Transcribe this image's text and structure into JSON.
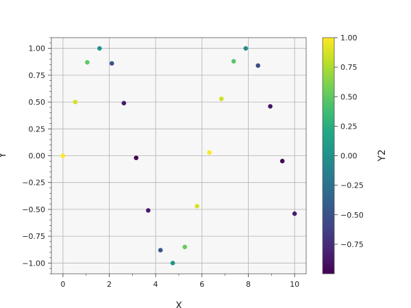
{
  "chart_data": {
    "type": "scatter",
    "title": "",
    "xlabel": "X",
    "ylabel": "Y",
    "xlim": [
      -0.5,
      10.5
    ],
    "ylim": [
      -1.1,
      1.1
    ],
    "xticks": [
      0,
      2,
      4,
      6,
      8,
      10
    ],
    "yticks": [
      -1.0,
      -0.75,
      -0.5,
      -0.25,
      0.0,
      0.25,
      0.5,
      0.75,
      1.0
    ],
    "grid": true,
    "colorbar": {
      "label": "Y2",
      "colormap": "viridis",
      "range": [
        -1.0,
        1.0
      ],
      "ticks": [
        -0.75,
        -0.5,
        -0.25,
        0.0,
        0.25,
        0.5,
        0.75,
        1.0
      ]
    },
    "points": [
      {
        "x": 0.0,
        "y": 0.0,
        "c": 1.0
      },
      {
        "x": 0.53,
        "y": 0.5,
        "c": 0.87
      },
      {
        "x": 1.05,
        "y": 0.87,
        "c": 0.5
      },
      {
        "x": 1.58,
        "y": 1.0,
        "c": 0.0
      },
      {
        "x": 2.11,
        "y": 0.86,
        "c": -0.5
      },
      {
        "x": 2.63,
        "y": 0.49,
        "c": -0.87
      },
      {
        "x": 3.16,
        "y": -0.02,
        "c": -1.0
      },
      {
        "x": 3.68,
        "y": -0.51,
        "c": -0.86
      },
      {
        "x": 4.21,
        "y": -0.88,
        "c": -0.48
      },
      {
        "x": 4.74,
        "y": -1.0,
        "c": 0.02
      },
      {
        "x": 5.26,
        "y": -0.85,
        "c": 0.52
      },
      {
        "x": 5.79,
        "y": -0.47,
        "c": 0.88
      },
      {
        "x": 6.32,
        "y": 0.03,
        "c": 1.0
      },
      {
        "x": 6.84,
        "y": 0.53,
        "c": 0.85
      },
      {
        "x": 7.37,
        "y": 0.88,
        "c": 0.47
      },
      {
        "x": 7.89,
        "y": 1.0,
        "c": -0.03
      },
      {
        "x": 8.42,
        "y": 0.84,
        "c": -0.54
      },
      {
        "x": 8.95,
        "y": 0.46,
        "c": -0.89
      },
      {
        "x": 9.47,
        "y": -0.05,
        "c": -1.0
      },
      {
        "x": 10.0,
        "y": -0.54,
        "c": -0.84
      }
    ]
  }
}
